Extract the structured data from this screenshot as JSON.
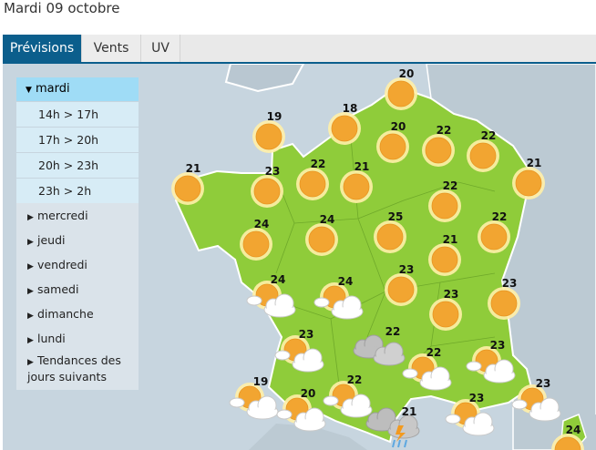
{
  "page": {
    "title": "Mardi 09 octobre"
  },
  "tabs": [
    {
      "label": "Prévisions",
      "active": true
    },
    {
      "label": "Vents",
      "active": false
    },
    {
      "label": "UV",
      "active": false
    }
  ],
  "day_menu": {
    "selected_day": "mardi",
    "time_slots": [
      "14h > 17h",
      "17h > 20h",
      "20h > 23h",
      "23h > 2h"
    ],
    "other_days": [
      "mercredi",
      "jeudi",
      "vendredi",
      "samedi",
      "dimanche",
      "lundi"
    ],
    "trends_line1": "Tendances des",
    "trends_line2": "jours suivants"
  },
  "colors": {
    "land": "#8fcc3a",
    "sea": "#c7d5df",
    "sun": "#f2a531",
    "sun_glow": "#fff0a8",
    "active_tab": "#0b5e8c",
    "selected_day": "#9fdcf6"
  },
  "forecasts": [
    {
      "temp": "20",
      "icon": "sun-icon"
    },
    {
      "temp": "19",
      "icon": "sun-icon"
    },
    {
      "temp": "18",
      "icon": "sun-icon"
    },
    {
      "temp": "20",
      "icon": "sun-icon"
    },
    {
      "temp": "22",
      "icon": "sun-icon"
    },
    {
      "temp": "22",
      "icon": "sun-icon"
    },
    {
      "temp": "21",
      "icon": "sun-icon"
    },
    {
      "temp": "23",
      "icon": "sun-icon"
    },
    {
      "temp": "22",
      "icon": "sun-icon"
    },
    {
      "temp": "21",
      "icon": "sun-icon"
    },
    {
      "temp": "22",
      "icon": "sun-icon"
    },
    {
      "temp": "21",
      "icon": "sun-icon"
    },
    {
      "temp": "24",
      "icon": "sun-icon"
    },
    {
      "temp": "24",
      "icon": "sun-icon"
    },
    {
      "temp": "25",
      "icon": "sun-icon"
    },
    {
      "temp": "21",
      "icon": "sun-icon"
    },
    {
      "temp": "22",
      "icon": "sun-icon"
    },
    {
      "temp": "24",
      "icon": "sun-cloud-icon"
    },
    {
      "temp": "24",
      "icon": "sun-cloud-icon"
    },
    {
      "temp": "23",
      "icon": "sun-icon"
    },
    {
      "temp": "23",
      "icon": "sun-icon"
    },
    {
      "temp": "23",
      "icon": "sun-icon"
    },
    {
      "temp": "22",
      "icon": "cloud-icon"
    },
    {
      "temp": "23",
      "icon": "sun-cloud-icon"
    },
    {
      "temp": "22",
      "icon": "sun-cloud-icon"
    },
    {
      "temp": "23",
      "icon": "sun-cloud-icon"
    },
    {
      "temp": "19",
      "icon": "sun-cloud-icon"
    },
    {
      "temp": "20",
      "icon": "sun-cloud-icon"
    },
    {
      "temp": "22",
      "icon": "sun-cloud-icon"
    },
    {
      "temp": "21",
      "icon": "storm-icon"
    },
    {
      "temp": "23",
      "icon": "sun-cloud-icon"
    },
    {
      "temp": "23",
      "icon": "sun-cloud-icon"
    },
    {
      "temp": "24",
      "icon": "sun-icon"
    }
  ]
}
